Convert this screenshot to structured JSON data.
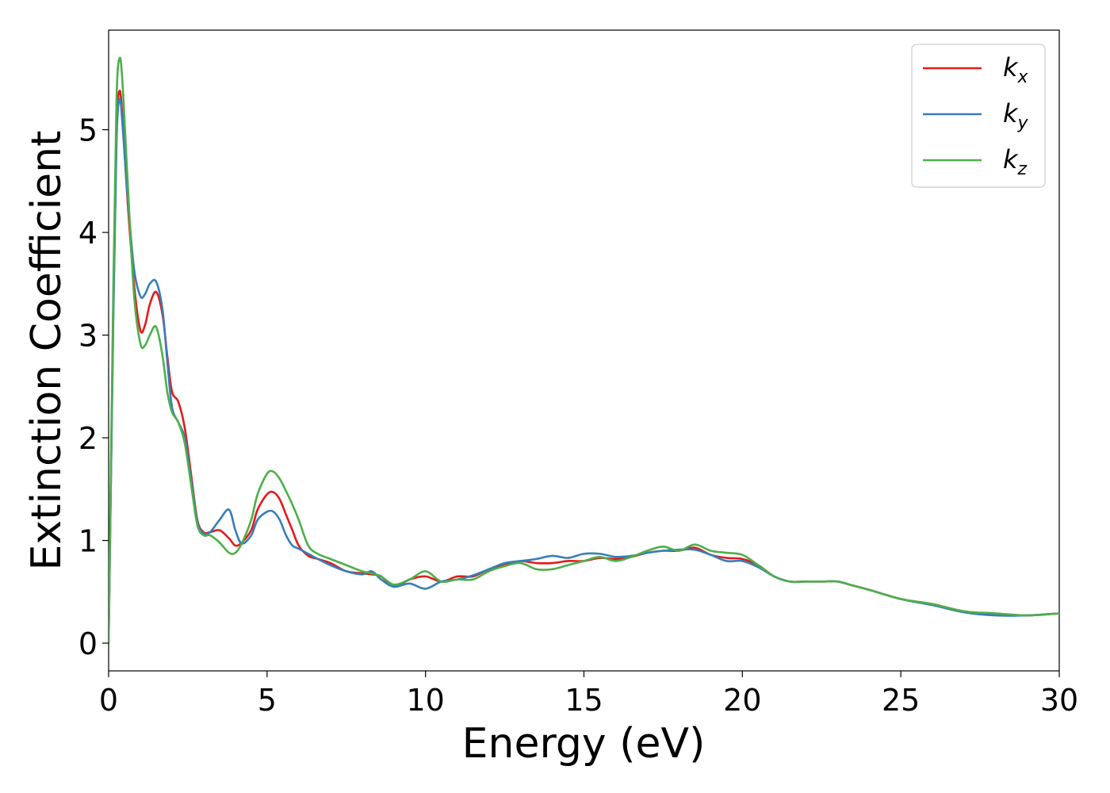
{
  "chart_data": {
    "type": "line",
    "xlabel": "Energy (eV)",
    "ylabel": "Extinction Coefficient",
    "xlim": [
      0,
      30
    ],
    "ylim": [
      -0.27,
      5.97
    ],
    "xticks": [
      0,
      5,
      10,
      15,
      20,
      25,
      30
    ],
    "xtick_labels": [
      "0",
      "5",
      "10",
      "15",
      "20",
      "25",
      "30"
    ],
    "yticks": [
      0,
      1,
      2,
      3,
      4,
      5
    ],
    "ytick_labels": [
      "0",
      "1",
      "2",
      "3",
      "4",
      "5"
    ],
    "grid": false,
    "legend_position": "top-right",
    "series": [
      {
        "name": "k",
        "subscript": "x",
        "color": "#e41a1c",
        "x": [
          0,
          0.15,
          0.25,
          0.35,
          0.45,
          0.6,
          0.8,
          1.0,
          1.15,
          1.3,
          1.5,
          1.7,
          1.85,
          2.0,
          2.2,
          2.4,
          2.6,
          2.8,
          3.0,
          3.2,
          3.5,
          3.8,
          4.0,
          4.2,
          4.5,
          4.7,
          5.0,
          5.2,
          5.4,
          5.6,
          5.8,
          6.0,
          6.3,
          6.6,
          7.0,
          7.5,
          8.0,
          8.3,
          8.6,
          9.0,
          9.5,
          10.0,
          10.5,
          11.0,
          11.5,
          12.0,
          12.5,
          13.0,
          13.5,
          14.0,
          14.5,
          15.0,
          15.5,
          16.0,
          16.5,
          17.0,
          17.5,
          18.0,
          18.5,
          19.0,
          19.5,
          20.0,
          20.5,
          21.0,
          21.5,
          22.0,
          22.5,
          23.0,
          23.5,
          24.0,
          25.0,
          26.0,
          27.0,
          28.0,
          29.0,
          30.0
        ],
        "values": [
          0,
          3.3,
          5.0,
          5.38,
          5.05,
          4.3,
          3.5,
          3.05,
          3.1,
          3.3,
          3.42,
          3.2,
          2.8,
          2.45,
          2.35,
          2.1,
          1.65,
          1.2,
          1.08,
          1.08,
          1.1,
          1.02,
          0.95,
          0.98,
          1.1,
          1.3,
          1.45,
          1.47,
          1.4,
          1.25,
          1.1,
          0.95,
          0.85,
          0.82,
          0.78,
          0.7,
          0.68,
          0.67,
          0.65,
          0.55,
          0.62,
          0.65,
          0.6,
          0.65,
          0.65,
          0.72,
          0.76,
          0.8,
          0.78,
          0.78,
          0.8,
          0.8,
          0.83,
          0.82,
          0.84,
          0.88,
          0.9,
          0.9,
          0.93,
          0.86,
          0.83,
          0.82,
          0.76,
          0.65,
          0.6,
          0.6,
          0.6,
          0.6,
          0.56,
          0.52,
          0.43,
          0.38,
          0.31,
          0.28,
          0.27,
          0.29
        ]
      },
      {
        "name": "k",
        "subscript": "y",
        "color": "#377eb8",
        "x": [
          0,
          0.15,
          0.25,
          0.35,
          0.45,
          0.6,
          0.8,
          1.0,
          1.15,
          1.3,
          1.5,
          1.7,
          1.85,
          2.0,
          2.2,
          2.4,
          2.6,
          2.8,
          3.0,
          3.2,
          3.5,
          3.8,
          4.0,
          4.2,
          4.5,
          4.7,
          5.0,
          5.2,
          5.4,
          5.6,
          5.8,
          6.0,
          6.3,
          6.6,
          7.0,
          7.5,
          8.0,
          8.3,
          8.6,
          9.0,
          9.5,
          10.0,
          10.5,
          11.0,
          11.5,
          12.0,
          12.5,
          13.0,
          13.5,
          14.0,
          14.5,
          15.0,
          15.5,
          16.0,
          16.5,
          17.0,
          17.5,
          18.0,
          18.5,
          19.0,
          19.5,
          20.0,
          20.5,
          21.0,
          21.5,
          22.0,
          22.5,
          23.0,
          23.5,
          24.0,
          25.0,
          26.0,
          27.0,
          28.0,
          29.0,
          30.0
        ],
        "values": [
          0,
          3.2,
          4.9,
          5.3,
          5.0,
          4.35,
          3.65,
          3.38,
          3.4,
          3.5,
          3.52,
          3.25,
          2.75,
          2.3,
          2.15,
          2.0,
          1.6,
          1.18,
          1.07,
          1.08,
          1.2,
          1.3,
          1.1,
          0.97,
          1.05,
          1.2,
          1.28,
          1.28,
          1.2,
          1.05,
          0.95,
          0.92,
          0.87,
          0.82,
          0.76,
          0.7,
          0.67,
          0.7,
          0.62,
          0.55,
          0.58,
          0.53,
          0.6,
          0.62,
          0.66,
          0.72,
          0.78,
          0.8,
          0.82,
          0.85,
          0.83,
          0.87,
          0.87,
          0.84,
          0.85,
          0.88,
          0.9,
          0.91,
          0.91,
          0.86,
          0.8,
          0.8,
          0.74,
          0.65,
          0.6,
          0.6,
          0.6,
          0.6,
          0.56,
          0.52,
          0.43,
          0.37,
          0.3,
          0.27,
          0.27,
          0.29
        ]
      },
      {
        "name": "k",
        "subscript": "z",
        "color": "#4daf4a",
        "x": [
          0,
          0.15,
          0.25,
          0.35,
          0.45,
          0.6,
          0.8,
          1.0,
          1.15,
          1.3,
          1.5,
          1.7,
          1.85,
          2.0,
          2.2,
          2.4,
          2.6,
          2.8,
          3.0,
          3.2,
          3.5,
          3.8,
          4.0,
          4.2,
          4.5,
          4.7,
          5.0,
          5.2,
          5.4,
          5.6,
          5.8,
          6.0,
          6.3,
          6.6,
          7.0,
          7.5,
          8.0,
          8.3,
          8.6,
          9.0,
          9.5,
          10.0,
          10.5,
          11.0,
          11.5,
          12.0,
          12.5,
          13.0,
          13.5,
          14.0,
          14.5,
          15.0,
          15.5,
          16.0,
          16.5,
          17.0,
          17.5,
          18.0,
          18.5,
          19.0,
          19.5,
          20.0,
          20.5,
          21.0,
          21.5,
          22.0,
          22.5,
          23.0,
          23.5,
          24.0,
          25.0,
          26.0,
          27.0,
          28.0,
          29.0,
          30.0
        ],
        "values": [
          0,
          3.5,
          5.3,
          5.7,
          5.4,
          4.5,
          3.4,
          2.92,
          2.9,
          3.0,
          3.08,
          2.8,
          2.45,
          2.25,
          2.15,
          1.95,
          1.55,
          1.15,
          1.05,
          1.05,
          0.98,
          0.88,
          0.88,
          0.97,
          1.2,
          1.45,
          1.65,
          1.67,
          1.6,
          1.48,
          1.35,
          1.2,
          0.95,
          0.87,
          0.82,
          0.76,
          0.7,
          0.68,
          0.65,
          0.57,
          0.62,
          0.7,
          0.6,
          0.62,
          0.62,
          0.7,
          0.75,
          0.78,
          0.72,
          0.72,
          0.76,
          0.8,
          0.84,
          0.8,
          0.84,
          0.9,
          0.94,
          0.9,
          0.96,
          0.9,
          0.88,
          0.86,
          0.76,
          0.65,
          0.6,
          0.6,
          0.6,
          0.6,
          0.56,
          0.52,
          0.43,
          0.38,
          0.31,
          0.29,
          0.27,
          0.29
        ]
      }
    ]
  }
}
